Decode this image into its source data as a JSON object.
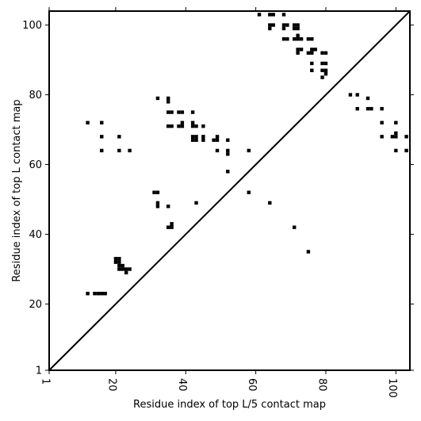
{
  "chart_data": {
    "type": "heatmap",
    "title": "",
    "xlabel": "Residue index of top L/5 contact map",
    "ylabel": "Residue index of top L contact map",
    "xlim": [
      1,
      104
    ],
    "ylim": [
      1,
      104
    ],
    "xticks": [
      1,
      20,
      40,
      60,
      80,
      100
    ],
    "yticks": [
      1,
      20,
      40,
      60,
      80,
      100
    ],
    "diagonal": true,
    "grid": false,
    "cells": [
      [
        61,
        103
      ],
      [
        64,
        103
      ],
      [
        65,
        103
      ],
      [
        68,
        103
      ],
      [
        64,
        100
      ],
      [
        65,
        100
      ],
      [
        68,
        100
      ],
      [
        69,
        100
      ],
      [
        71,
        100
      ],
      [
        72,
        100
      ],
      [
        64,
        99
      ],
      [
        68,
        99
      ],
      [
        71,
        99
      ],
      [
        72,
        99
      ],
      [
        68,
        96
      ],
      [
        69,
        96
      ],
      [
        71,
        96
      ],
      [
        72,
        96
      ],
      [
        73,
        96
      ],
      [
        75,
        96
      ],
      [
        76,
        96
      ],
      [
        72,
        97
      ],
      [
        72,
        93
      ],
      [
        73,
        93
      ],
      [
        76,
        93
      ],
      [
        77,
        93
      ],
      [
        72,
        92
      ],
      [
        75,
        92
      ],
      [
        76,
        92
      ],
      [
        79,
        92
      ],
      [
        80,
        92
      ],
      [
        76,
        89
      ],
      [
        79,
        89
      ],
      [
        80,
        89
      ],
      [
        76,
        87
      ],
      [
        79,
        87
      ],
      [
        80,
        87
      ],
      [
        80,
        86
      ],
      [
        79,
        85
      ],
      [
        32,
        79
      ],
      [
        35,
        79
      ],
      [
        35,
        78
      ],
      [
        35,
        75
      ],
      [
        36,
        75
      ],
      [
        38,
        75
      ],
      [
        39,
        75
      ],
      [
        42,
        75
      ],
      [
        39,
        72
      ],
      [
        42,
        72
      ],
      [
        35,
        71
      ],
      [
        36,
        71
      ],
      [
        38,
        71
      ],
      [
        39,
        71
      ],
      [
        42,
        71
      ],
      [
        43,
        71
      ],
      [
        45,
        71
      ],
      [
        42,
        68
      ],
      [
        43,
        68
      ],
      [
        45,
        68
      ],
      [
        49,
        68
      ],
      [
        42,
        67
      ],
      [
        43,
        67
      ],
      [
        45,
        67
      ],
      [
        48,
        67
      ],
      [
        49,
        67
      ],
      [
        52,
        67
      ],
      [
        49,
        64
      ],
      [
        52,
        64
      ],
      [
        58,
        64
      ],
      [
        52,
        63
      ],
      [
        52,
        58
      ],
      [
        58,
        52
      ],
      [
        12,
        72
      ],
      [
        16,
        72
      ],
      [
        16,
        68
      ],
      [
        21,
        68
      ],
      [
        16,
        64
      ],
      [
        21,
        64
      ],
      [
        24,
        64
      ],
      [
        31,
        52
      ],
      [
        32,
        52
      ],
      [
        32,
        49
      ],
      [
        32,
        48
      ],
      [
        35,
        48
      ],
      [
        43,
        49
      ],
      [
        35,
        42
      ],
      [
        36,
        42
      ],
      [
        36,
        43
      ],
      [
        64,
        49
      ],
      [
        71,
        42
      ],
      [
        75,
        35
      ],
      [
        20,
        33
      ],
      [
        21,
        33
      ],
      [
        20,
        32
      ],
      [
        21,
        32
      ],
      [
        21,
        31
      ],
      [
        22,
        31
      ],
      [
        21,
        30
      ],
      [
        22,
        30
      ],
      [
        23,
        30
      ],
      [
        24,
        30
      ],
      [
        23,
        29
      ],
      [
        12,
        23
      ],
      [
        14,
        23
      ],
      [
        15,
        23
      ],
      [
        16,
        23
      ],
      [
        17,
        23
      ],
      [
        87,
        80
      ],
      [
        89,
        80
      ],
      [
        92,
        79
      ],
      [
        89,
        76
      ],
      [
        92,
        76
      ],
      [
        93,
        76
      ],
      [
        96,
        76
      ],
      [
        96,
        72
      ],
      [
        100,
        72
      ],
      [
        96,
        68
      ],
      [
        99,
        68
      ],
      [
        100,
        68
      ],
      [
        100,
        69
      ],
      [
        103,
        68
      ],
      [
        100,
        64
      ],
      [
        103,
        64
      ]
    ]
  }
}
